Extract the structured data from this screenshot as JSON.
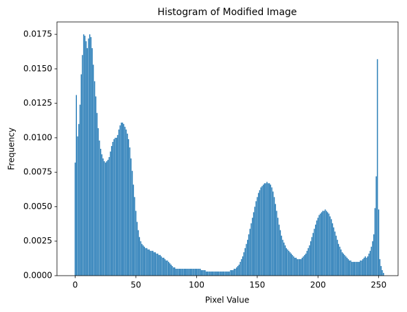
{
  "chart_data": {
    "type": "bar",
    "title": "Histogram of Modified Image",
    "xlabel": "Pixel Value",
    "ylabel": "Frequency",
    "color": "#1f77b4",
    "x": [
      0,
      1,
      2,
      3,
      4,
      5,
      6,
      7,
      8,
      9,
      10,
      11,
      12,
      13,
      14,
      15,
      16,
      17,
      18,
      19,
      20,
      21,
      22,
      23,
      24,
      25,
      26,
      27,
      28,
      29,
      30,
      31,
      32,
      33,
      34,
      35,
      36,
      37,
      38,
      39,
      40,
      41,
      42,
      43,
      44,
      45,
      46,
      47,
      48,
      49,
      50,
      51,
      52,
      53,
      54,
      55,
      56,
      57,
      58,
      59,
      60,
      61,
      62,
      63,
      64,
      65,
      66,
      67,
      68,
      69,
      70,
      71,
      72,
      73,
      74,
      75,
      76,
      77,
      78,
      79,
      80,
      81,
      82,
      83,
      84,
      85,
      86,
      87,
      88,
      89,
      90,
      91,
      92,
      93,
      94,
      95,
      96,
      97,
      98,
      99,
      100,
      101,
      102,
      103,
      104,
      105,
      106,
      107,
      108,
      109,
      110,
      111,
      112,
      113,
      114,
      115,
      116,
      117,
      118,
      119,
      120,
      121,
      122,
      123,
      124,
      125,
      126,
      127,
      128,
      129,
      130,
      131,
      132,
      133,
      134,
      135,
      136,
      137,
      138,
      139,
      140,
      141,
      142,
      143,
      144,
      145,
      146,
      147,
      148,
      149,
      150,
      151,
      152,
      153,
      154,
      155,
      156,
      157,
      158,
      159,
      160,
      161,
      162,
      163,
      164,
      165,
      166,
      167,
      168,
      169,
      170,
      171,
      172,
      173,
      174,
      175,
      176,
      177,
      178,
      179,
      180,
      181,
      182,
      183,
      184,
      185,
      186,
      187,
      188,
      189,
      190,
      191,
      192,
      193,
      194,
      195,
      196,
      197,
      198,
      199,
      200,
      201,
      202,
      203,
      204,
      205,
      206,
      207,
      208,
      209,
      210,
      211,
      212,
      213,
      214,
      215,
      216,
      217,
      218,
      219,
      220,
      221,
      222,
      223,
      224,
      225,
      226,
      227,
      228,
      229,
      230,
      231,
      232,
      233,
      234,
      235,
      236,
      237,
      238,
      239,
      240,
      241,
      242,
      243,
      244,
      245,
      246,
      247,
      248,
      249,
      250,
      251,
      252,
      253,
      254
    ],
    "values": [
      0.0082,
      0.0131,
      0.0101,
      0.011,
      0.0124,
      0.0146,
      0.016,
      0.0175,
      0.0174,
      0.017,
      0.0165,
      0.0172,
      0.0175,
      0.0173,
      0.0165,
      0.0153,
      0.0141,
      0.013,
      0.0118,
      0.0107,
      0.0098,
      0.0092,
      0.0088,
      0.0085,
      0.0083,
      0.0082,
      0.0083,
      0.0084,
      0.0086,
      0.009,
      0.0094,
      0.0097,
      0.0099,
      0.01,
      0.01,
      0.0102,
      0.0106,
      0.0109,
      0.0111,
      0.0111,
      0.011,
      0.0108,
      0.0106,
      0.0103,
      0.0099,
      0.0093,
      0.0085,
      0.0076,
      0.0066,
      0.0057,
      0.0047,
      0.0039,
      0.0033,
      0.0028,
      0.0025,
      0.0023,
      0.0022,
      0.0021,
      0.002,
      0.002,
      0.0019,
      0.0019,
      0.0018,
      0.0018,
      0.0018,
      0.0017,
      0.0017,
      0.0016,
      0.0016,
      0.0015,
      0.0015,
      0.0014,
      0.0013,
      0.0013,
      0.0012,
      0.0011,
      0.0011,
      0.001,
      0.0009,
      0.0008,
      0.0007,
      0.0006,
      0.0006,
      0.0005,
      0.0005,
      0.0005,
      0.0005,
      0.0005,
      0.0005,
      0.0005,
      0.0005,
      0.0005,
      0.0005,
      0.0005,
      0.0005,
      0.0005,
      0.0005,
      0.0005,
      0.0005,
      0.0005,
      0.0005,
      0.0005,
      0.0005,
      0.0005,
      0.0004,
      0.0004,
      0.0004,
      0.0004,
      0.0003,
      0.0003,
      0.0003,
      0.0003,
      0.0003,
      0.0003,
      0.0003,
      0.0003,
      0.0003,
      0.0003,
      0.0003,
      0.0003,
      0.0003,
      0.0003,
      0.0003,
      0.0003,
      0.0003,
      0.0003,
      0.0003,
      0.0003,
      0.0004,
      0.0004,
      0.0004,
      0.0005,
      0.0005,
      0.0006,
      0.0007,
      0.0008,
      0.001,
      0.0012,
      0.0014,
      0.0017,
      0.002,
      0.0023,
      0.0026,
      0.003,
      0.0034,
      0.0038,
      0.0042,
      0.0046,
      0.005,
      0.0054,
      0.0057,
      0.006,
      0.0062,
      0.0064,
      0.0065,
      0.0066,
      0.0067,
      0.0067,
      0.0068,
      0.0067,
      0.0067,
      0.0066,
      0.0064,
      0.0061,
      0.0057,
      0.0052,
      0.0047,
      0.0042,
      0.0037,
      0.0033,
      0.0029,
      0.0026,
      0.0024,
      0.0022,
      0.002,
      0.0019,
      0.0018,
      0.0017,
      0.0016,
      0.0015,
      0.0014,
      0.0013,
      0.0013,
      0.0012,
      0.0012,
      0.0012,
      0.0012,
      0.0013,
      0.0014,
      0.0015,
      0.0016,
      0.0018,
      0.002,
      0.0022,
      0.0025,
      0.0028,
      0.0031,
      0.0034,
      0.0037,
      0.004,
      0.0042,
      0.0044,
      0.0045,
      0.0046,
      0.0047,
      0.0047,
      0.0048,
      0.0047,
      0.0046,
      0.0045,
      0.0043,
      0.0041,
      0.0038,
      0.0035,
      0.0032,
      0.0029,
      0.0026,
      0.0023,
      0.0021,
      0.0019,
      0.0017,
      0.0016,
      0.0015,
      0.0014,
      0.0013,
      0.0012,
      0.0011,
      0.0011,
      0.001,
      0.001,
      0.001,
      0.001,
      0.001,
      0.001,
      0.001,
      0.0011,
      0.0011,
      0.0012,
      0.0013,
      0.0014,
      0.0013,
      0.0014,
      0.0016,
      0.0018,
      0.0021,
      0.0025,
      0.003,
      0.0049,
      0.0072,
      0.0157,
      0.0048,
      0.0012,
      0.0007,
      0.0004,
      0.0002
    ],
    "xlim": [
      -15,
      266
    ],
    "xticks": [
      0,
      50,
      100,
      150,
      200,
      250
    ],
    "ylim": [
      0,
      0.0184
    ],
    "yticks": [
      {
        "value": 0,
        "label": "0.0000"
      },
      {
        "value": 0.0025,
        "label": "0.0025"
      },
      {
        "value": 0.005,
        "label": "0.0050"
      },
      {
        "value": 0.0075,
        "label": "0.0075"
      },
      {
        "value": 0.01,
        "label": "0.0100"
      },
      {
        "value": 0.0125,
        "label": "0.0125"
      },
      {
        "value": 0.015,
        "label": "0.0150"
      },
      {
        "value": 0.0175,
        "label": "0.0175"
      }
    ]
  }
}
